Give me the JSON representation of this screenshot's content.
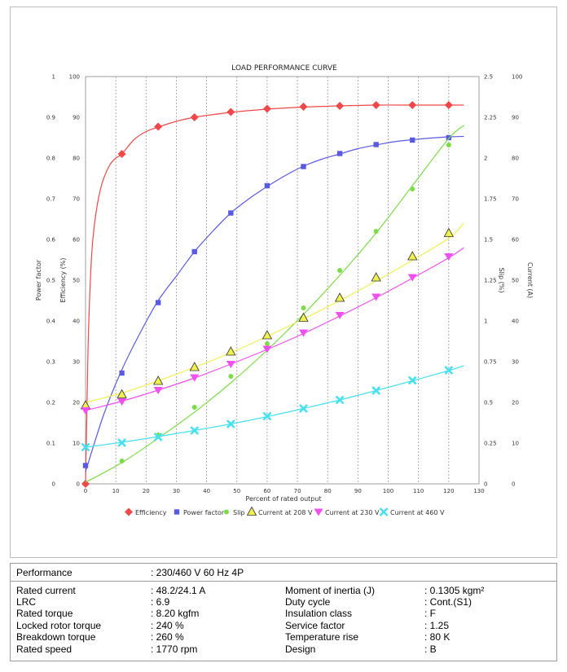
{
  "chart_data": {
    "type": "line",
    "title": "LOAD PERFORMANCE CURVE",
    "xlabel": "Percent of rated output",
    "xlim": [
      0,
      130
    ],
    "x_ticks": [
      "0",
      "10",
      "20",
      "30",
      "40",
      "50",
      "60",
      "70",
      "80",
      "90",
      "100",
      "110",
      "120",
      "130"
    ],
    "grid": true,
    "axes": {
      "power_factor": {
        "label": "Power factor",
        "range": [
          0,
          1
        ],
        "ticks": [
          "0",
          "0.1",
          "0.2",
          "0.3",
          "0.4",
          "0.5",
          "0.6",
          "0.7",
          "0.8",
          "0.9",
          "1"
        ]
      },
      "efficiency": {
        "label": "Efficiency (%)",
        "range": [
          0,
          100
        ],
        "ticks": [
          "0",
          "10",
          "20",
          "30",
          "40",
          "50",
          "60",
          "70",
          "80",
          "90",
          "100"
        ]
      },
      "slip": {
        "label": "Slip (%)",
        "range": [
          0,
          2.5
        ],
        "ticks": [
          "0",
          "0.25",
          "0.5",
          "0.75",
          "1",
          "1.25",
          "1.5",
          "1.75",
          "2",
          "2.25",
          "2.5"
        ]
      },
      "current": {
        "label": "Current (A)",
        "range": [
          0,
          100
        ],
        "ticks": [
          "0",
          "10",
          "20",
          "30",
          "40",
          "50",
          "60",
          "70",
          "80",
          "90",
          "100"
        ]
      }
    },
    "series": [
      {
        "name": "Efficiency",
        "axis": "efficiency",
        "color": "#f04848",
        "marker": "diamond",
        "curve": [
          [
            0,
            0
          ],
          [
            0.5,
            20
          ],
          [
            1,
            38
          ],
          [
            2,
            56
          ],
          [
            3,
            64
          ],
          [
            4,
            69
          ],
          [
            5,
            72.5
          ],
          [
            6,
            75
          ],
          [
            8,
            78.3
          ],
          [
            10,
            80
          ],
          [
            12,
            81
          ],
          [
            16,
            84.5
          ],
          [
            20,
            86.5
          ],
          [
            24,
            87.6
          ],
          [
            30,
            89
          ],
          [
            36,
            90
          ],
          [
            48,
            91.2
          ],
          [
            60,
            92
          ],
          [
            72,
            92.5
          ],
          [
            84,
            92.8
          ],
          [
            96,
            93
          ],
          [
            108,
            93
          ],
          [
            120,
            93
          ],
          [
            125,
            93
          ]
        ],
        "points": [
          [
            0,
            0
          ],
          [
            12,
            81
          ],
          [
            24,
            87.7
          ],
          [
            36,
            90
          ],
          [
            48,
            91.3
          ],
          [
            60,
            92.1
          ],
          [
            72,
            92.6
          ],
          [
            84,
            92.8
          ],
          [
            96,
            93
          ],
          [
            108,
            93
          ],
          [
            120,
            93
          ]
        ]
      },
      {
        "name": "Power factor",
        "axis": "power_factor",
        "color": "#5a5ae0",
        "marker": "square",
        "curve": [
          [
            0,
            0.03
          ],
          [
            6,
            0.17
          ],
          [
            12,
            0.28
          ],
          [
            18,
            0.37
          ],
          [
            24,
            0.45
          ],
          [
            30,
            0.51
          ],
          [
            36,
            0.57
          ],
          [
            42,
            0.62
          ],
          [
            48,
            0.665
          ],
          [
            54,
            0.7
          ],
          [
            60,
            0.73
          ],
          [
            66,
            0.757
          ],
          [
            72,
            0.78
          ],
          [
            78,
            0.797
          ],
          [
            84,
            0.81
          ],
          [
            90,
            0.823
          ],
          [
            96,
            0.832
          ],
          [
            102,
            0.84
          ],
          [
            108,
            0.845
          ],
          [
            114,
            0.849
          ],
          [
            120,
            0.852
          ],
          [
            125,
            0.853
          ]
        ],
        "points": [
          [
            0,
            0.045
          ],
          [
            12,
            0.272
          ],
          [
            24,
            0.445
          ],
          [
            36,
            0.57
          ],
          [
            48,
            0.665
          ],
          [
            60,
            0.732
          ],
          [
            72,
            0.779
          ],
          [
            84,
            0.811
          ],
          [
            96,
            0.833
          ],
          [
            108,
            0.844
          ],
          [
            120,
            0.85
          ]
        ]
      },
      {
        "name": "Slip",
        "axis": "slip",
        "color": "#7cdc48",
        "marker": "circle",
        "curve": [
          [
            0,
            0.01
          ],
          [
            12,
            0.13
          ],
          [
            24,
            0.28
          ],
          [
            36,
            0.44
          ],
          [
            48,
            0.62
          ],
          [
            60,
            0.82
          ],
          [
            72,
            1.04
          ],
          [
            84,
            1.28
          ],
          [
            96,
            1.54
          ],
          [
            108,
            1.83
          ],
          [
            120,
            2.12
          ],
          [
            125,
            2.2
          ]
        ],
        "points": [
          [
            12,
            0.14
          ],
          [
            24,
            0.3
          ],
          [
            36,
            0.47
          ],
          [
            48,
            0.66
          ],
          [
            60,
            0.86
          ],
          [
            72,
            1.08
          ],
          [
            84,
            1.31
          ],
          [
            96,
            1.55
          ],
          [
            108,
            1.81
          ],
          [
            120,
            2.08
          ]
        ]
      },
      {
        "name": "Current at 208 V",
        "axis": "current",
        "color": "#f0f050",
        "marker": "triangle-up",
        "curve": [
          [
            0,
            20
          ],
          [
            12,
            22.3
          ],
          [
            24,
            25.3
          ],
          [
            36,
            28.6
          ],
          [
            48,
            32.2
          ],
          [
            60,
            36.2
          ],
          [
            72,
            40.5
          ],
          [
            84,
            45
          ],
          [
            96,
            49.8
          ],
          [
            108,
            54.9
          ],
          [
            120,
            60.3
          ],
          [
            125,
            64
          ]
        ],
        "points": [
          [
            0,
            19.2
          ],
          [
            12,
            21.9
          ],
          [
            24,
            25.2
          ],
          [
            36,
            28.6
          ],
          [
            48,
            32.4
          ],
          [
            60,
            36.4
          ],
          [
            72,
            40.7
          ],
          [
            84,
            45.6
          ],
          [
            96,
            50.6
          ],
          [
            108,
            55.8
          ],
          [
            120,
            61.5
          ]
        ]
      },
      {
        "name": "Current at 230 V",
        "axis": "current",
        "color": "#f050f0",
        "marker": "triangle-down",
        "curve": [
          [
            0,
            18
          ],
          [
            12,
            20.3
          ],
          [
            24,
            23
          ],
          [
            36,
            26
          ],
          [
            48,
            29.4
          ],
          [
            60,
            33
          ],
          [
            72,
            36.9
          ],
          [
            84,
            41.2
          ],
          [
            96,
            45.7
          ],
          [
            108,
            50.5
          ],
          [
            120,
            55.5
          ],
          [
            125,
            58
          ]
        ],
        "points": [
          [
            0,
            18
          ],
          [
            12,
            20.2
          ],
          [
            24,
            23
          ],
          [
            36,
            26.1
          ],
          [
            48,
            29.4
          ],
          [
            60,
            33.1
          ],
          [
            72,
            37.1
          ],
          [
            84,
            41.4
          ],
          [
            96,
            45.9
          ],
          [
            108,
            50.7
          ],
          [
            120,
            55.8
          ]
        ]
      },
      {
        "name": "Current at 460 V",
        "axis": "current",
        "color": "#48e0f0",
        "marker": "x",
        "curve": [
          [
            0,
            9
          ],
          [
            12,
            10.2
          ],
          [
            24,
            11.6
          ],
          [
            36,
            13.1
          ],
          [
            48,
            14.7
          ],
          [
            60,
            16.5
          ],
          [
            72,
            18.5
          ],
          [
            84,
            20.6
          ],
          [
            96,
            22.9
          ],
          [
            108,
            25.3
          ],
          [
            120,
            27.8
          ],
          [
            125,
            29
          ]
        ],
        "points": [
          [
            0,
            9
          ],
          [
            12,
            10.1
          ],
          [
            24,
            11.5
          ],
          [
            36,
            13.1
          ],
          [
            48,
            14.7
          ],
          [
            60,
            16.6
          ],
          [
            72,
            18.5
          ],
          [
            84,
            20.6
          ],
          [
            96,
            22.9
          ],
          [
            108,
            25.4
          ],
          [
            120,
            27.9
          ]
        ]
      }
    ]
  },
  "specs": {
    "header": {
      "label": "Performance",
      "value": ": 230/460 V 60 Hz 4P"
    },
    "left": [
      {
        "label": "Rated current",
        "value": ": 48.2/24.1 A"
      },
      {
        "label": "LRC",
        "value": ": 6.9"
      },
      {
        "label": "Rated torque",
        "value": ": 8.20 kgfm"
      },
      {
        "label": "Locked rotor torque",
        "value": ": 240 %"
      },
      {
        "label": "Breakdown torque",
        "value": ": 260 %"
      },
      {
        "label": "Rated speed",
        "value": ": 1770 rpm"
      }
    ],
    "right": [
      {
        "label": "Moment of inertia (J)",
        "value": ": 0.1305 kgm²"
      },
      {
        "label": "Duty cycle",
        "value": ": Cont.(S1)"
      },
      {
        "label": "Insulation class",
        "value": ": F"
      },
      {
        "label": "Service factor",
        "value": ": 1.25"
      },
      {
        "label": "Temperature rise",
        "value": ": 80 K"
      },
      {
        "label": "Design",
        "value": ": B"
      }
    ]
  }
}
